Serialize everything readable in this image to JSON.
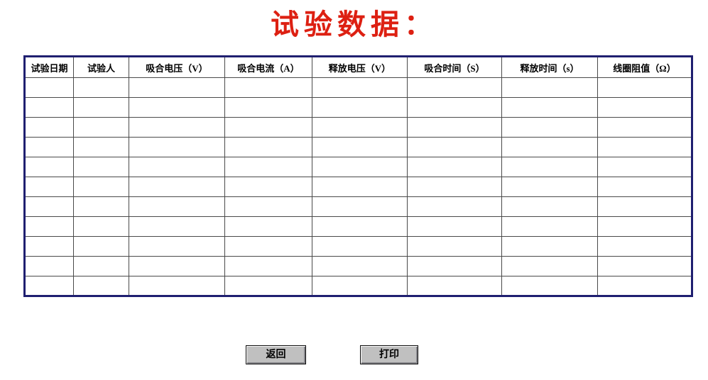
{
  "title": {
    "text": "试验数据：",
    "color": "#dd2012"
  },
  "table": {
    "columns": [
      "试验日期",
      "试验人",
      "吸合电压（V）",
      "吸合电流（A）",
      "释放电压（V）",
      "吸合时间（S）",
      "释放时间（s）",
      "线圈阻值（Ω）"
    ],
    "rows": [
      [
        "",
        "",
        "",
        "",
        "",
        "",
        "",
        ""
      ],
      [
        "",
        "",
        "",
        "",
        "",
        "",
        "",
        ""
      ],
      [
        "",
        "",
        "",
        "",
        "",
        "",
        "",
        ""
      ],
      [
        "",
        "",
        "",
        "",
        "",
        "",
        "",
        ""
      ],
      [
        "",
        "",
        "",
        "",
        "",
        "",
        "",
        ""
      ],
      [
        "",
        "",
        "",
        "",
        "",
        "",
        "",
        ""
      ],
      [
        "",
        "",
        "",
        "",
        "",
        "",
        "",
        ""
      ],
      [
        "",
        "",
        "",
        "",
        "",
        "",
        "",
        ""
      ],
      [
        "",
        "",
        "",
        "",
        "",
        "",
        "",
        ""
      ],
      [
        "",
        "",
        "",
        "",
        "",
        "",
        "",
        ""
      ],
      [
        "",
        "",
        "",
        "",
        "",
        "",
        "",
        ""
      ]
    ],
    "colors": {
      "outer_border": "#1f1f70",
      "grid_line": "#4a4a4a",
      "header_text": "#000000"
    }
  },
  "buttons": {
    "back_label": "返回",
    "print_label": "打印"
  }
}
